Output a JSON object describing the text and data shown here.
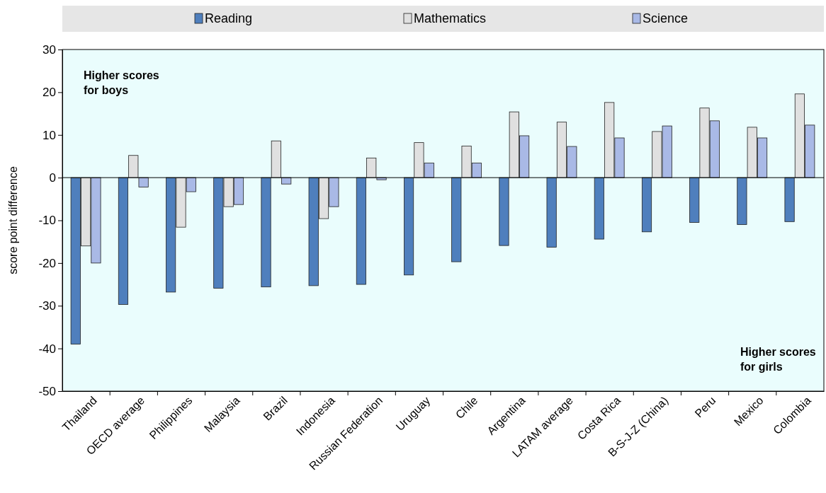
{
  "chart_data": {
    "type": "bar",
    "ylabel": "score point difference",
    "categories": [
      "Thailand",
      "OECD average",
      "Philippines",
      "Malaysia",
      "Brazil",
      "Indonesia",
      "Russian Federation",
      "Uruguay",
      "Chile",
      "Argentina",
      "LATAM average",
      "Costa Rica",
      "B-S-J-Z (China)",
      "Peru",
      "Mexico",
      "Colombia"
    ],
    "series": [
      {
        "name": "Reading",
        "color": "#4f7fbd",
        "values": [
          -39,
          -29.7,
          -26.8,
          -25.9,
          -25.6,
          -25.3,
          -25,
          -22.8,
          -19.7,
          -15.9,
          -16.3,
          -14.4,
          -12.7,
          -10.5,
          -11,
          -10.3
        ]
      },
      {
        "name": "Mathematics",
        "color": "#e0e0e0",
        "values": [
          -16,
          5.2,
          -11.6,
          -6.8,
          8.6,
          -9.6,
          4.6,
          8.2,
          7.4,
          15.4,
          13,
          17.6,
          10.8,
          16.3,
          11.8,
          19.6
        ]
      },
      {
        "name": "Science",
        "color": "#a9b9e6",
        "values": [
          -20,
          -2.2,
          -3.3,
          -6.3,
          -1.5,
          -6.8,
          -0.5,
          3.4,
          3.4,
          9.8,
          7.3,
          9.3,
          12.1,
          13.3,
          9.3,
          12.3
        ]
      }
    ],
    "ylim": [
      -50,
      30
    ],
    "yticks": [
      -50,
      -40,
      -30,
      -20,
      -10,
      0,
      10,
      20,
      30
    ],
    "legend": "top",
    "annotations": [
      "Higher scores\nfor boys",
      "Higher scores\nfor girls"
    ]
  }
}
